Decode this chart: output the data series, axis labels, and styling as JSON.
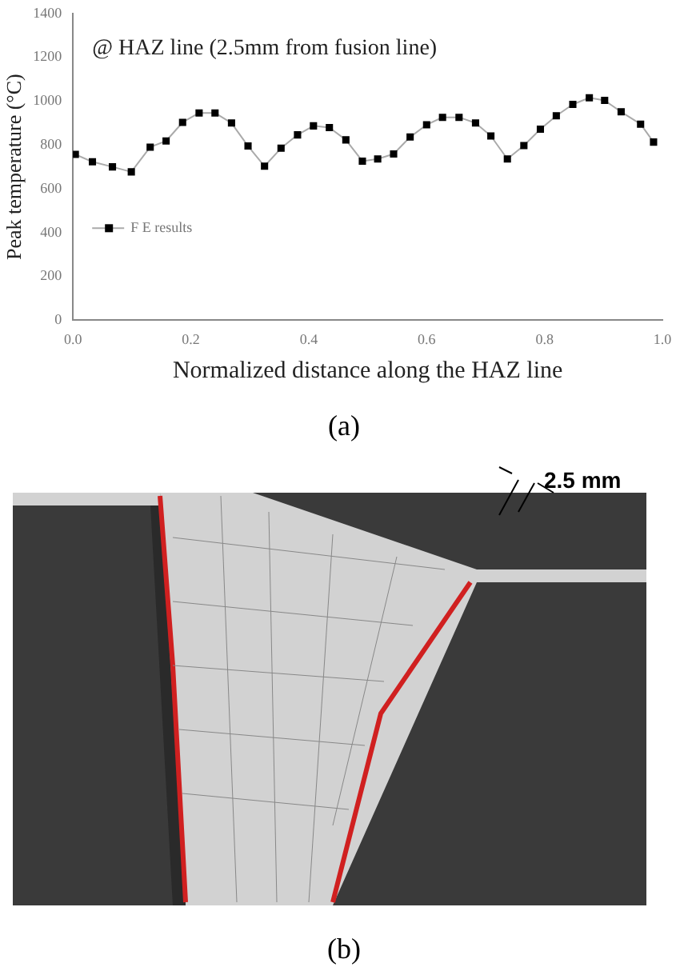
{
  "chart_data": {
    "type": "line",
    "xlabel": "Normalized distance along the HAZ line",
    "ylabel": "Peak temperature (°C)",
    "annotations": [
      "@ HAZ line (2.5mm from fusion line)",
      "(a)",
      "2.5 mm",
      "(b)"
    ],
    "series": [
      {
        "name": "F E results",
        "color": "#000000",
        "x": [
          0.004,
          0.033,
          0.067,
          0.099,
          0.131,
          0.158,
          0.186,
          0.214,
          0.241,
          0.269,
          0.297,
          0.325,
          0.353,
          0.381,
          0.408,
          0.435,
          0.463,
          0.491,
          0.517,
          0.544,
          0.572,
          0.6,
          0.627,
          0.655,
          0.683,
          0.709,
          0.737,
          0.765,
          0.793,
          0.82,
          0.848,
          0.876,
          0.902,
          0.93,
          0.963,
          0.985
        ],
        "values": [
          757,
          723,
          700,
          677,
          790,
          818,
          903,
          946,
          946,
          900,
          795,
          703,
          785,
          846,
          887,
          879,
          823,
          726,
          736,
          759,
          836,
          892,
          926,
          926,
          900,
          841,
          736,
          797,
          872,
          933,
          985,
          1015,
          1003,
          951,
          895,
          813
        ]
      }
    ],
    "xlim": [
      0,
      1
    ],
    "xticks": [
      {
        "value": 0,
        "label": "0.0"
      },
      {
        "value": 0.2,
        "label": "0.2"
      },
      {
        "value": 0.4,
        "label": "0.4"
      },
      {
        "value": 0.6,
        "label": "0.6"
      },
      {
        "value": 0.8,
        "label": "0.8"
      },
      {
        "value": 1,
        "label": "1.0"
      }
    ],
    "ylim": [
      0,
      1400
    ],
    "yticks": [
      0,
      200,
      400,
      600,
      800,
      1000,
      1200,
      1400
    ],
    "grid": false,
    "legend": "left",
    "marker": "square",
    "line_style": "solid"
  }
}
